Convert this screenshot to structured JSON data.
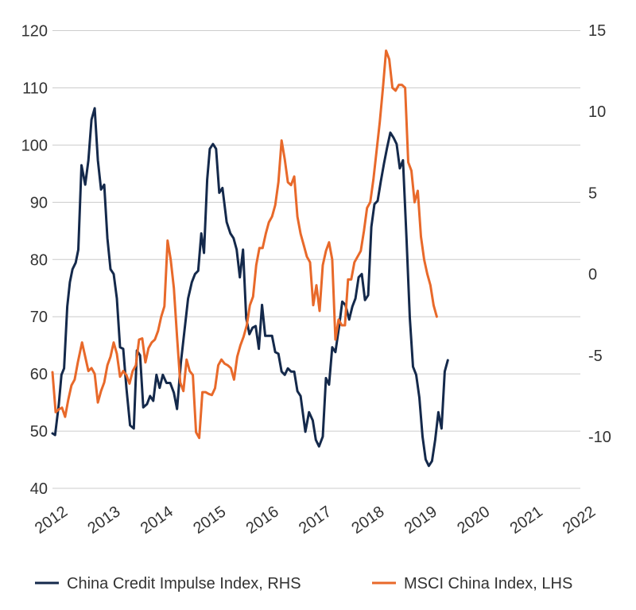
{
  "chart_data": {
    "type": "line",
    "left_axis": {
      "ticks": [
        40,
        50,
        60,
        70,
        80,
        90,
        100,
        110,
        120
      ],
      "ylim": [
        40,
        120
      ]
    },
    "right_axis": {
      "ticks": [
        -10,
        -5,
        0,
        5,
        10,
        15
      ],
      "ylim": [
        -13,
        15
      ]
    },
    "x_tick_labels": [
      "2012",
      "2013",
      "2014",
      "2015",
      "2016",
      "2017",
      "2018",
      "2019",
      "2020",
      "2021",
      "2022"
    ],
    "xlim": [
      2012.0,
      2022.0
    ],
    "grid": "horizontal",
    "legend_position": "bottom",
    "series": [
      {
        "name": "China Credit Impulse Index, RHS",
        "axis": "right",
        "color": "#14294b",
        "points": [
          [
            2012.0,
            -9.8
          ],
          [
            2012.05,
            -9.9
          ],
          [
            2012.12,
            -8.0
          ],
          [
            2012.17,
            -6.2
          ],
          [
            2012.22,
            -5.8
          ],
          [
            2012.28,
            -2.0
          ],
          [
            2012.33,
            -0.5
          ],
          [
            2012.38,
            0.3
          ],
          [
            2012.44,
            0.7
          ],
          [
            2012.49,
            1.5
          ],
          [
            2012.55,
            6.7
          ],
          [
            2012.62,
            5.5
          ],
          [
            2012.68,
            7.0
          ],
          [
            2012.74,
            9.5
          ],
          [
            2012.8,
            10.2
          ],
          [
            2012.86,
            7.0
          ],
          [
            2012.92,
            5.2
          ],
          [
            2012.98,
            5.5
          ],
          [
            2013.04,
            2.2
          ],
          [
            2013.1,
            0.3
          ],
          [
            2013.16,
            0.0
          ],
          [
            2013.22,
            -1.5
          ],
          [
            2013.28,
            -4.5
          ],
          [
            2013.34,
            -4.6
          ],
          [
            2013.4,
            -7.0
          ],
          [
            2013.47,
            -9.3
          ],
          [
            2013.54,
            -9.5
          ],
          [
            2013.6,
            -4.7
          ],
          [
            2013.66,
            -5.0
          ],
          [
            2013.72,
            -8.2
          ],
          [
            2013.79,
            -8.0
          ],
          [
            2013.85,
            -7.5
          ],
          [
            2013.91,
            -7.8
          ],
          [
            2013.97,
            -6.2
          ],
          [
            2014.03,
            -7.0
          ],
          [
            2014.09,
            -6.2
          ],
          [
            2014.16,
            -6.7
          ],
          [
            2014.23,
            -6.7
          ],
          [
            2014.3,
            -7.3
          ],
          [
            2014.36,
            -8.3
          ],
          [
            2014.43,
            -5.5
          ],
          [
            2014.5,
            -3.5
          ],
          [
            2014.57,
            -1.5
          ],
          [
            2014.64,
            -0.5
          ],
          [
            2014.7,
            0.0
          ],
          [
            2014.76,
            0.2
          ],
          [
            2014.82,
            2.5
          ],
          [
            2014.87,
            1.3
          ],
          [
            2014.93,
            5.8
          ],
          [
            2014.98,
            7.7
          ],
          [
            2015.04,
            8.0
          ],
          [
            2015.1,
            7.7
          ],
          [
            2015.16,
            5.0
          ],
          [
            2015.22,
            5.3
          ],
          [
            2015.3,
            3.2
          ],
          [
            2015.37,
            2.5
          ],
          [
            2015.43,
            2.2
          ],
          [
            2015.49,
            1.5
          ],
          [
            2015.55,
            -0.2
          ],
          [
            2015.61,
            1.5
          ],
          [
            2015.67,
            -2.7
          ],
          [
            2015.73,
            -3.7
          ],
          [
            2015.79,
            -3.3
          ],
          [
            2015.85,
            -3.2
          ],
          [
            2015.91,
            -4.6
          ],
          [
            2015.97,
            -1.9
          ],
          [
            2016.03,
            -3.8
          ],
          [
            2016.09,
            -3.8
          ],
          [
            2016.16,
            -3.8
          ],
          [
            2016.22,
            -4.8
          ],
          [
            2016.28,
            -4.9
          ],
          [
            2016.34,
            -6.0
          ],
          [
            2016.4,
            -6.2
          ],
          [
            2016.46,
            -5.8
          ],
          [
            2016.52,
            -6.0
          ],
          [
            2016.58,
            -6.0
          ],
          [
            2016.64,
            -7.2
          ],
          [
            2016.7,
            -7.5
          ],
          [
            2016.79,
            -9.7
          ],
          [
            2016.86,
            -8.5
          ],
          [
            2016.93,
            -9.0
          ],
          [
            2016.99,
            -10.2
          ],
          [
            2017.05,
            -10.6
          ],
          [
            2017.12,
            -10.0
          ],
          [
            2017.18,
            -6.4
          ],
          [
            2017.24,
            -6.8
          ],
          [
            2017.3,
            -4.5
          ],
          [
            2017.36,
            -4.8
          ],
          [
            2017.43,
            -3.2
          ],
          [
            2017.49,
            -1.7
          ],
          [
            2017.55,
            -1.9
          ],
          [
            2017.62,
            -2.8
          ],
          [
            2017.68,
            -2.0
          ],
          [
            2017.74,
            -1.5
          ],
          [
            2017.8,
            -0.2
          ],
          [
            2017.86,
            0.0
          ],
          [
            2017.92,
            -1.6
          ],
          [
            2017.98,
            -1.3
          ],
          [
            2018.04,
            2.9
          ],
          [
            2018.1,
            4.3
          ],
          [
            2018.16,
            4.5
          ],
          [
            2018.22,
            5.7
          ],
          [
            2018.28,
            6.8
          ],
          [
            2018.34,
            7.8
          ],
          [
            2018.4,
            8.7
          ],
          [
            2018.46,
            8.4
          ],
          [
            2018.52,
            8.0
          ],
          [
            2018.58,
            6.5
          ],
          [
            2018.64,
            7.0
          ],
          [
            2018.71,
            2.0
          ],
          [
            2018.77,
            -2.7
          ],
          [
            2018.83,
            -5.7
          ],
          [
            2018.89,
            -6.2
          ],
          [
            2018.95,
            -7.6
          ],
          [
            2019.01,
            -10.0
          ],
          [
            2019.07,
            -11.4
          ],
          [
            2019.13,
            -11.8
          ],
          [
            2019.19,
            -11.5
          ],
          [
            2019.25,
            -10.2
          ],
          [
            2019.31,
            -8.5
          ],
          [
            2019.37,
            -9.5
          ],
          [
            2019.43,
            -6.0
          ],
          [
            2019.49,
            -5.3
          ]
        ]
      },
      {
        "name": "MSCI China Index, LHS",
        "axis": "left",
        "color": "#e8692a",
        "points": [
          [
            2012.0,
            60.3
          ],
          [
            2012.06,
            53.3
          ],
          [
            2012.12,
            53.8
          ],
          [
            2012.18,
            54.1
          ],
          [
            2012.24,
            52.5
          ],
          [
            2012.3,
            55.5
          ],
          [
            2012.36,
            58.0
          ],
          [
            2012.42,
            59.0
          ],
          [
            2012.48,
            62.0
          ],
          [
            2012.56,
            65.5
          ],
          [
            2012.62,
            63.0
          ],
          [
            2012.68,
            60.5
          ],
          [
            2012.74,
            61.0
          ],
          [
            2012.8,
            60.0
          ],
          [
            2012.86,
            55.0
          ],
          [
            2012.92,
            57.0
          ],
          [
            2012.98,
            58.5
          ],
          [
            2013.04,
            61.5
          ],
          [
            2013.1,
            63.0
          ],
          [
            2013.16,
            65.5
          ],
          [
            2013.22,
            63.5
          ],
          [
            2013.28,
            59.5
          ],
          [
            2013.34,
            60.5
          ],
          [
            2013.4,
            59.8
          ],
          [
            2013.46,
            58.3
          ],
          [
            2013.52,
            60.5
          ],
          [
            2013.58,
            61.5
          ],
          [
            2013.64,
            66.0
          ],
          [
            2013.7,
            66.2
          ],
          [
            2013.76,
            62.0
          ],
          [
            2013.82,
            64.5
          ],
          [
            2013.88,
            65.5
          ],
          [
            2013.94,
            66.0
          ],
          [
            2014.0,
            67.5
          ],
          [
            2014.06,
            70.0
          ],
          [
            2014.12,
            71.8
          ],
          [
            2014.18,
            83.3
          ],
          [
            2014.24,
            80.0
          ],
          [
            2014.3,
            75.0
          ],
          [
            2014.36,
            66.5
          ],
          [
            2014.42,
            58.5
          ],
          [
            2014.48,
            57.0
          ],
          [
            2014.54,
            62.5
          ],
          [
            2014.6,
            60.5
          ],
          [
            2014.66,
            59.8
          ],
          [
            2014.72,
            49.8
          ],
          [
            2014.78,
            48.8
          ],
          [
            2014.84,
            56.8
          ],
          [
            2014.9,
            56.8
          ],
          [
            2014.96,
            56.5
          ],
          [
            2015.02,
            56.3
          ],
          [
            2015.08,
            57.5
          ],
          [
            2015.14,
            61.5
          ],
          [
            2015.2,
            62.5
          ],
          [
            2015.26,
            61.8
          ],
          [
            2015.32,
            61.5
          ],
          [
            2015.38,
            61.0
          ],
          [
            2015.44,
            59.0
          ],
          [
            2015.5,
            63.0
          ],
          [
            2015.56,
            65.0
          ],
          [
            2015.62,
            66.5
          ],
          [
            2015.68,
            68.5
          ],
          [
            2015.74,
            72.0
          ],
          [
            2015.8,
            73.5
          ],
          [
            2015.86,
            79.0
          ],
          [
            2015.92,
            82.0
          ],
          [
            2015.98,
            82.0
          ],
          [
            2016.04,
            84.5
          ],
          [
            2016.1,
            86.5
          ],
          [
            2016.16,
            87.5
          ],
          [
            2016.22,
            89.5
          ],
          [
            2016.28,
            93.5
          ],
          [
            2016.34,
            100.8
          ],
          [
            2016.4,
            97.5
          ],
          [
            2016.46,
            93.5
          ],
          [
            2016.52,
            93.0
          ],
          [
            2016.58,
            94.5
          ],
          [
            2016.64,
            87.5
          ],
          [
            2016.7,
            84.5
          ],
          [
            2016.76,
            82.5
          ],
          [
            2016.82,
            80.5
          ],
          [
            2016.88,
            79.5
          ],
          [
            2016.94,
            72.0
          ],
          [
            2017.0,
            75.5
          ],
          [
            2017.06,
            71.0
          ],
          [
            2017.12,
            79.0
          ],
          [
            2017.18,
            81.5
          ],
          [
            2017.24,
            83.0
          ],
          [
            2017.3,
            80.0
          ],
          [
            2017.36,
            66.0
          ],
          [
            2017.42,
            69.5
          ],
          [
            2017.48,
            68.5
          ],
          [
            2017.54,
            68.5
          ],
          [
            2017.6,
            76.5
          ],
          [
            2017.66,
            76.5
          ],
          [
            2017.72,
            79.5
          ],
          [
            2017.78,
            80.5
          ],
          [
            2017.84,
            81.5
          ],
          [
            2017.9,
            85.0
          ],
          [
            2017.96,
            89.0
          ],
          [
            2018.02,
            90.0
          ],
          [
            2018.08,
            94.0
          ],
          [
            2018.14,
            99.0
          ],
          [
            2018.2,
            104.0
          ],
          [
            2018.26,
            110.0
          ],
          [
            2018.32,
            116.5
          ],
          [
            2018.38,
            115.0
          ],
          [
            2018.44,
            110.0
          ],
          [
            2018.5,
            109.5
          ],
          [
            2018.56,
            110.5
          ],
          [
            2018.62,
            110.5
          ],
          [
            2018.68,
            110.0
          ],
          [
            2018.74,
            97.0
          ],
          [
            2018.8,
            95.5
          ],
          [
            2018.86,
            90.0
          ],
          [
            2018.92,
            92.0
          ],
          [
            2018.98,
            84.0
          ],
          [
            2019.04,
            80.0
          ],
          [
            2019.1,
            77.5
          ],
          [
            2019.16,
            75.5
          ],
          [
            2019.22,
            72.0
          ],
          [
            2019.28,
            70.0
          ]
        ]
      }
    ]
  },
  "legend": [
    {
      "label": "China Credit Impulse Index, RHS",
      "color": "#14294b"
    },
    {
      "label": "MSCI China Index, LHS",
      "color": "#e8692a"
    }
  ]
}
